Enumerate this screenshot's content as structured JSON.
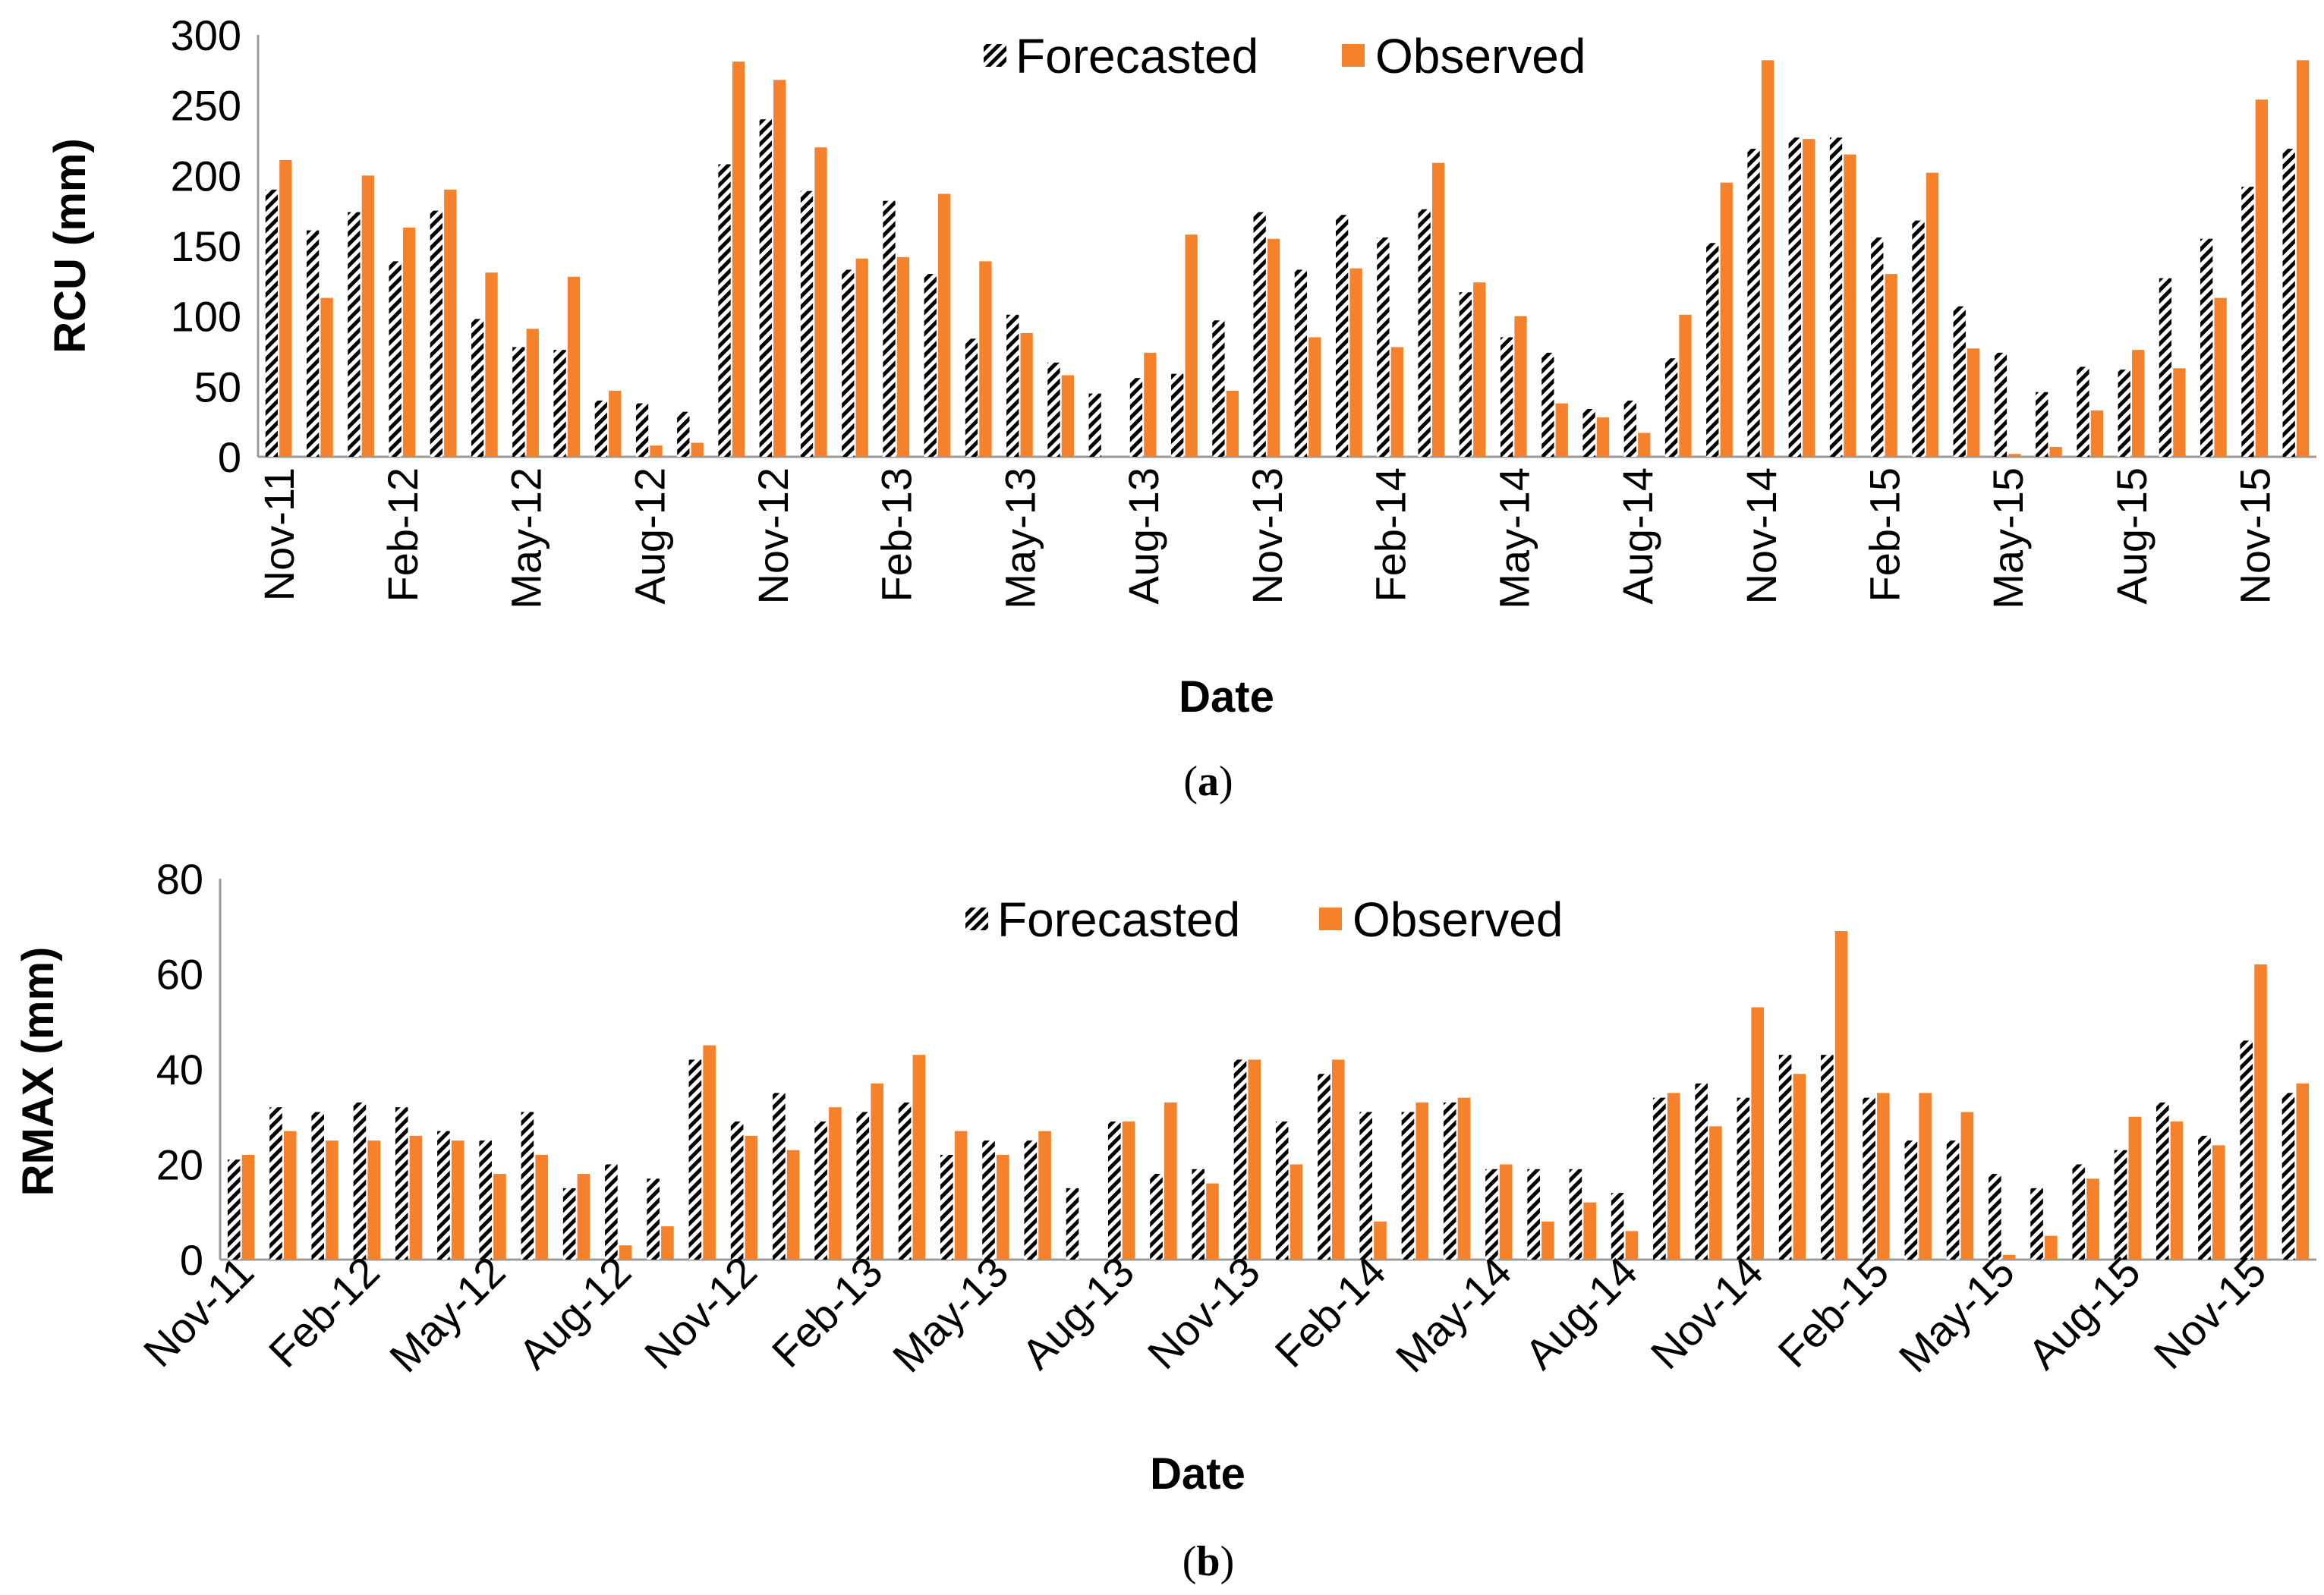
{
  "colors": {
    "observed": "#f5822a",
    "forecast_stripe": "#000000",
    "forecast_bg": "#ffffff",
    "axis": "#9a9a9a"
  },
  "chart_data": [
    {
      "id": "a",
      "type": "bar",
      "caption": {
        "open": "(",
        "letter": "a",
        "close": ")"
      },
      "xlabel": "Date",
      "ylabel": "RCU (mm)",
      "ylim": [
        0,
        300
      ],
      "yticks": [
        "0",
        "50",
        "100",
        "150",
        "200",
        "250",
        "300"
      ],
      "tick_labels": [
        "Nov-11",
        "Feb-12",
        "May-12",
        "Aug-12",
        "Nov-12",
        "Feb-13",
        "May-13",
        "Aug-13",
        "Nov-13",
        "Feb-14",
        "May-14",
        "Aug-14",
        "Nov-14",
        "Feb-15",
        "May-15",
        "Aug-15",
        "Nov-15"
      ],
      "tick_every": 3,
      "tick_rotation": -90,
      "legend": [
        "Forecasted",
        "Observed"
      ],
      "categories": [
        "Nov-11",
        "Dec-11",
        "Jan-12",
        "Feb-12",
        "Mar-12",
        "Apr-12",
        "May-12",
        "Jun-12",
        "Jul-12",
        "Aug-12",
        "Sep-12",
        "Oct-12",
        "Nov-12",
        "Dec-12",
        "Jan-13",
        "Feb-13",
        "Mar-13",
        "Apr-13",
        "May-13",
        "Jun-13",
        "Jul-13",
        "Aug-13",
        "Sep-13",
        "Oct-13",
        "Nov-13",
        "Dec-13",
        "Jan-14",
        "Feb-14",
        "Mar-14",
        "Apr-14",
        "May-14",
        "Jun-14",
        "Jul-14",
        "Aug-14",
        "Sep-14",
        "Oct-14",
        "Nov-14",
        "Dec-14",
        "Jan-15",
        "Feb-15",
        "Mar-15",
        "Apr-15",
        "May-15",
        "Jun-15",
        "Jul-15",
        "Aug-15",
        "Sep-15",
        "Oct-15",
        "Nov-15",
        "Dec-15"
      ],
      "series": [
        {
          "name": "Forecasted",
          "values": [
            190,
            161,
            174,
            139,
            175,
            98,
            78,
            76,
            40,
            38,
            32,
            208,
            240,
            189,
            133,
            182,
            130,
            84,
            101,
            67,
            45,
            56,
            59,
            97,
            174,
            133,
            172,
            156,
            176,
            117,
            85,
            74,
            34,
            40,
            70,
            152,
            219,
            227,
            227,
            156,
            168,
            107,
            74,
            46,
            64,
            62,
            127,
            155,
            192,
            219
          ]
        },
        {
          "name": "Observed",
          "values": [
            211,
            113,
            200,
            163,
            190,
            131,
            91,
            128,
            47,
            8,
            10,
            281,
            268,
            220,
            141,
            142,
            187,
            139,
            88,
            58,
            0,
            74,
            158,
            47,
            155,
            85,
            134,
            78,
            209,
            124,
            100,
            38,
            28,
            17,
            101,
            195,
            282,
            226,
            215,
            130,
            202,
            77,
            2,
            7,
            33,
            76,
            63,
            113,
            254,
            282
          ]
        }
      ]
    },
    {
      "id": "b",
      "type": "bar",
      "caption": {
        "open": "(",
        "letter": "b",
        "close": ")"
      },
      "xlabel": "Date",
      "ylabel": "RMAX (mm)",
      "ylim": [
        0,
        80
      ],
      "yticks": [
        "0",
        "20",
        "40",
        "60",
        "80"
      ],
      "tick_labels": [
        "Nov-11",
        "Feb-12",
        "May-12",
        "Aug-12",
        "Nov-12",
        "Feb-13",
        "May-13",
        "Aug-13",
        "Nov-13",
        "Feb-14",
        "May-14",
        "Aug-14",
        "Nov-14",
        "Feb-15",
        "May-15",
        "Aug-15",
        "Nov-15"
      ],
      "tick_every": 3,
      "tick_rotation": -45,
      "legend": [
        "Forecasted",
        "Observed"
      ],
      "categories": [
        "Nov-11",
        "Dec-11",
        "Jan-12",
        "Feb-12",
        "Mar-12",
        "Apr-12",
        "May-12",
        "Jun-12",
        "Jul-12",
        "Aug-12",
        "Sep-12",
        "Oct-12",
        "Nov-12",
        "Dec-12",
        "Jan-13",
        "Feb-13",
        "Mar-13",
        "Apr-13",
        "May-13",
        "Jun-13",
        "Jul-13",
        "Aug-13",
        "Sep-13",
        "Oct-13",
        "Nov-13",
        "Dec-13",
        "Jan-14",
        "Feb-14",
        "Mar-14",
        "Apr-14",
        "May-14",
        "Jun-14",
        "Jul-14",
        "Aug-14",
        "Sep-14",
        "Oct-14",
        "Nov-14",
        "Dec-14",
        "Jan-15",
        "Feb-15",
        "Mar-15",
        "Apr-15",
        "May-15",
        "Jun-15",
        "Jul-15",
        "Aug-15",
        "Sep-15",
        "Oct-15",
        "Nov-15",
        "Dec-15"
      ],
      "series": [
        {
          "name": "Forecasted",
          "values": [
            21,
            32,
            31,
            33,
            32,
            27,
            25,
            31,
            15,
            20,
            17,
            42,
            29,
            35,
            29,
            31,
            33,
            22,
            25,
            25,
            15,
            29,
            18,
            19,
            42,
            29,
            39,
            31,
            31,
            33,
            19,
            19,
            19,
            14,
            34,
            37,
            34,
            43,
            43,
            34,
            25,
            25,
            18,
            15,
            20,
            23,
            33,
            26,
            46,
            35
          ]
        },
        {
          "name": "Observed",
          "values": [
            22,
            27,
            25,
            25,
            26,
            25,
            18,
            22,
            18,
            3,
            7,
            45,
            26,
            23,
            32,
            37,
            43,
            27,
            22,
            27,
            0,
            29,
            33,
            16,
            42,
            20,
            42,
            8,
            33,
            34,
            20,
            8,
            12,
            6,
            35,
            28,
            53,
            39,
            69,
            35,
            35,
            31,
            1,
            5,
            17,
            30,
            29,
            24,
            62,
            37
          ]
        }
      ]
    }
  ]
}
